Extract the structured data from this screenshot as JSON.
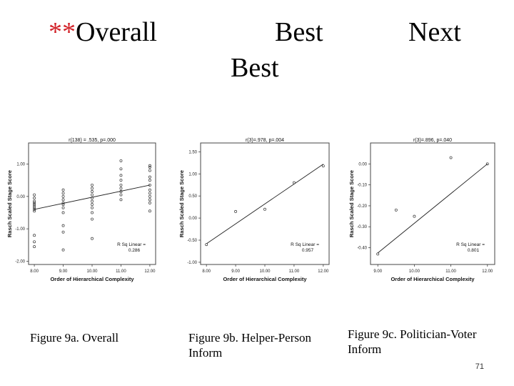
{
  "slide": {
    "title_marker": "**",
    "col_overall": "Overall",
    "col_best": "Best",
    "col_best_sub": "Best",
    "col_next": "Next",
    "page_number": "71"
  },
  "charts": [
    {
      "id": "overall",
      "annotation": "r(138) = .535, p=.000",
      "r2_label": "R Sq Linear =",
      "r2_value": "0.286",
      "caption": "Figure 9a. Overall"
    },
    {
      "id": "helper",
      "annotation": "r(3)=.978, p=.004",
      "r2_label": "R Sq Linear =",
      "r2_value": "0.957",
      "caption": "Figure 9b. Helper-Person Inform"
    },
    {
      "id": "politician",
      "annotation": "r(3)=.896, p=.040",
      "r2_label": "R Sq Linear =",
      "r2_value": "0.801",
      "caption": "Figure 9c. Politician-Voter Inform"
    }
  ],
  "chart_data": [
    {
      "type": "scatter",
      "xlabel": "Order of Hierarchical Complexity",
      "ylabel": "Rasch Scaled Stage Score",
      "xlim": [
        7.8,
        12.2
      ],
      "ylim": [
        -2.1,
        1.65
      ],
      "xticks": [
        8,
        9,
        10,
        11,
        12
      ],
      "xtick_labels": [
        "8.00",
        "9.00",
        "10.00",
        "11.00",
        "12.00"
      ],
      "yticks": [
        -2,
        -1,
        0,
        1
      ],
      "ytick_labels": [
        "-2.00",
        "-1.00",
        "0.00",
        "1.00"
      ],
      "fit": {
        "x": [
          8,
          12
        ],
        "y": [
          -0.4,
          0.35
        ]
      },
      "points": [
        [
          8,
          0.05
        ],
        [
          8,
          -0.05
        ],
        [
          8,
          -0.15
        ],
        [
          8,
          -0.2
        ],
        [
          8,
          -0.25
        ],
        [
          8,
          -0.3
        ],
        [
          8,
          -0.35
        ],
        [
          8,
          -0.4
        ],
        [
          8,
          -0.45
        ],
        [
          8,
          -1.2
        ],
        [
          8,
          -1.4
        ],
        [
          8,
          -1.55
        ],
        [
          9,
          0.2
        ],
        [
          9,
          0.1
        ],
        [
          9,
          0.0
        ],
        [
          9,
          -0.1
        ],
        [
          9,
          -0.2
        ],
        [
          9,
          -0.25
        ],
        [
          9,
          -0.35
        ],
        [
          9,
          -0.5
        ],
        [
          9,
          -0.9
        ],
        [
          9,
          -1.1
        ],
        [
          9,
          -1.65
        ],
        [
          10,
          0.35
        ],
        [
          10,
          0.25
        ],
        [
          10,
          0.15
        ],
        [
          10,
          0.05
        ],
        [
          10,
          -0.05
        ],
        [
          10,
          -0.15
        ],
        [
          10,
          -0.25
        ],
        [
          10,
          -0.35
        ],
        [
          10,
          -0.5
        ],
        [
          10,
          -0.7
        ],
        [
          10,
          -1.3
        ],
        [
          11,
          1.1
        ],
        [
          11,
          0.85
        ],
        [
          11,
          0.65
        ],
        [
          11,
          0.5
        ],
        [
          11,
          0.35
        ],
        [
          11,
          0.25
        ],
        [
          11,
          0.15
        ],
        [
          11,
          0.05
        ],
        [
          11,
          -0.1
        ],
        [
          12,
          0.95
        ],
        [
          12,
          0.9
        ],
        [
          12,
          0.8
        ],
        [
          12,
          0.6
        ],
        [
          12,
          0.5
        ],
        [
          12,
          0.35
        ],
        [
          12,
          0.2
        ],
        [
          12,
          0.1
        ],
        [
          12,
          0.0
        ],
        [
          12,
          -0.1
        ],
        [
          12,
          -0.2
        ],
        [
          12,
          -0.45
        ]
      ]
    },
    {
      "type": "scatter",
      "xlabel": "Order of Hierarchical Complexity",
      "ylabel": "Rasch Scaled Stage Score",
      "xlim": [
        7.8,
        12.2
      ],
      "ylim": [
        -1.05,
        1.7
      ],
      "xticks": [
        8,
        9,
        10,
        11,
        12
      ],
      "xtick_labels": [
        "8.00",
        "9.00",
        "10.00",
        "11.00",
        "12.00"
      ],
      "yticks": [
        -1.0,
        -0.5,
        0.0,
        0.5,
        1.0,
        1.5
      ],
      "ytick_labels": [
        "-1.00",
        "-0.50",
        "0.00",
        "0.50",
        "1.00",
        "1.50"
      ],
      "fit": {
        "x": [
          8,
          12
        ],
        "y": [
          -0.58,
          1.22
        ]
      },
      "points": [
        [
          8,
          -0.6
        ],
        [
          9,
          0.15
        ],
        [
          10,
          0.2
        ],
        [
          11,
          0.8
        ],
        [
          12,
          1.18
        ]
      ]
    },
    {
      "type": "scatter",
      "xlabel": "Order of Hierarchical Complexity",
      "ylabel": "Rasch Scaled Stage Score",
      "xlim": [
        8.8,
        12.2
      ],
      "ylim": [
        -0.48,
        0.1
      ],
      "xticks": [
        9,
        10,
        11,
        12
      ],
      "xtick_labels": [
        "9.00",
        "10.00",
        "11.00",
        "12.00"
      ],
      "yticks": [
        -0.4,
        -0.3,
        -0.2,
        -0.1,
        0.0
      ],
      "ytick_labels": [
        "-0.40",
        "-0.30",
        "-0.20",
        "-0.10",
        "0.00"
      ],
      "fit": {
        "x": [
          9,
          12
        ],
        "y": [
          -0.425,
          0.0
        ]
      },
      "points": [
        [
          9,
          -0.43
        ],
        [
          9.5,
          -0.22
        ],
        [
          10,
          -0.25
        ],
        [
          11,
          0.03
        ],
        [
          12,
          0.0
        ]
      ]
    }
  ]
}
